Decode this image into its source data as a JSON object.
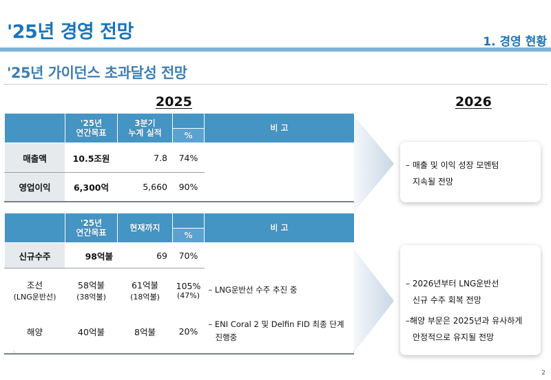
{
  "header": {
    "title": "'25년 경영 전망",
    "section": "1. 경영 현황",
    "subtitle": "'25년 가이던스 초과달성 전망"
  },
  "years": {
    "current": "2025",
    "next": "2026"
  },
  "table1": {
    "headers": {
      "target": [
        "'25년",
        "연간목표"
      ],
      "actual": [
        "3분기",
        "누계 실적"
      ],
      "pct": "%",
      "notes": "비 고"
    },
    "rows": [
      {
        "label": "매출액",
        "target": "10.5조원",
        "actual": "7.8",
        "pct": "74%"
      },
      {
        "label": "영업이익",
        "target": "6,300억",
        "actual": "5,660",
        "pct": "90%"
      }
    ]
  },
  "table2": {
    "headers": {
      "target": [
        "'25년",
        "연간목표"
      ],
      "actual": "현재까지",
      "pct": "%",
      "notes": "비 고"
    },
    "main_row": {
      "label": "신규수주",
      "target": "98억불",
      "actual": "69",
      "pct": "70%"
    },
    "sub_rows": [
      {
        "label": "조선",
        "label_sub": "(LNG운반선)",
        "target": "58억불",
        "target_sub": "(38억불)",
        "actual": "61억불",
        "actual_sub": "(18억불)",
        "pct": "105%",
        "pct_sub": "(47%)",
        "note": [
          "– LNG운반선 수주 추진 중"
        ]
      },
      {
        "label": "해양",
        "target": "40억불",
        "actual": "8억불",
        "pct": "20%",
        "note": [
          "– ENI Coral 2 및 Delfin FID 최종 단계",
          "진행중"
        ]
      }
    ]
  },
  "outlook": {
    "panel1": [
      "– 매출 및 이익 성장 모멘텀",
      "지속될 전망"
    ],
    "panel2": [
      "– 2026년부터 LNG운반선",
      "신규 수주 회복 전망",
      "–해양 부문은 2025년과 유사하게",
      "안정적으로 유지될 전망"
    ]
  },
  "page_number": "2",
  "colors": {
    "brand_blue": "#1d74b8",
    "header_blue": "#4494c4",
    "label_gray": "#e7eaed",
    "rule_blue": "#7fb3d8"
  }
}
